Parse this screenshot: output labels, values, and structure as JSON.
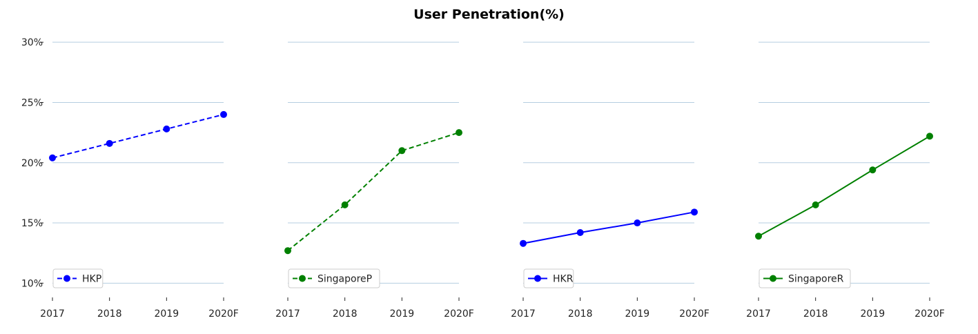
{
  "chart_data": {
    "type": "line",
    "title": "User Penetration(%)",
    "categories": [
      "2017",
      "2018",
      "2019",
      "2020F"
    ],
    "yticks": [
      "10%",
      "15%",
      "20%",
      "25%",
      "30%"
    ],
    "ytick_values": [
      10,
      15,
      20,
      25,
      30
    ],
    "ylim": [
      8.3,
      31.5
    ],
    "grid": "horizontal",
    "legend_placement": "lower-left",
    "colors": {
      "grid": "#b5cde0",
      "blue": "#0000ff",
      "green": "#008000"
    },
    "panels": [
      {
        "name": "HKP",
        "color": "#0000ff",
        "linestyle": "dashed",
        "values": [
          20.4,
          21.6,
          22.8,
          24.0
        ]
      },
      {
        "name": "SingaporeP",
        "color": "#008000",
        "linestyle": "dashed",
        "values": [
          12.7,
          16.5,
          21.0,
          22.5
        ]
      },
      {
        "name": "HKR",
        "color": "#0000ff",
        "linestyle": "solid",
        "values": [
          13.3,
          14.2,
          15.0,
          15.9
        ]
      },
      {
        "name": "SingaporeR",
        "color": "#008000",
        "linestyle": "solid",
        "values": [
          13.9,
          16.5,
          19.4,
          22.2
        ]
      }
    ]
  }
}
